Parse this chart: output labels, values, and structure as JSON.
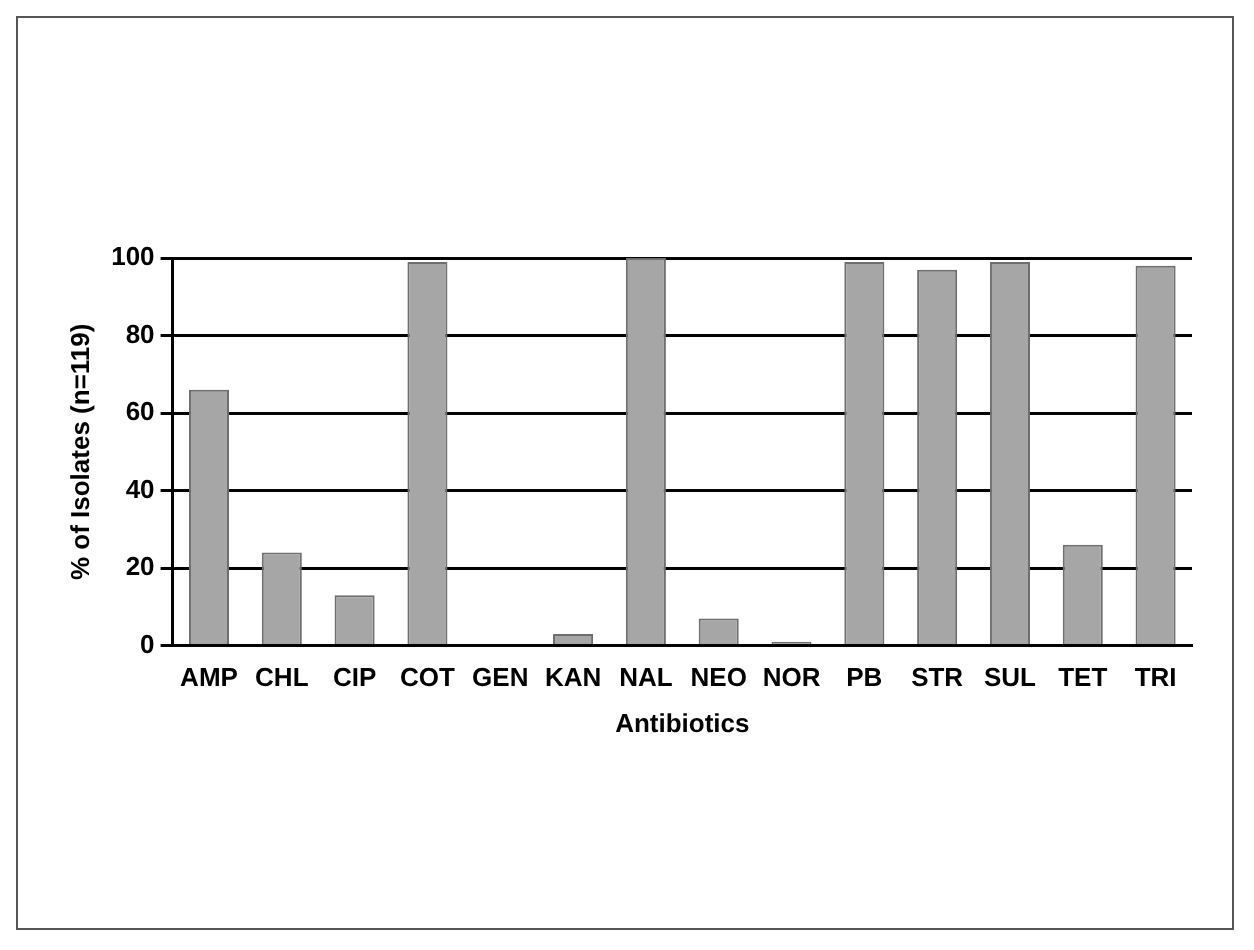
{
  "chart_data": {
    "type": "bar",
    "xlabel": "Antibiotics",
    "ylabel": "% of Isolates (n=119)",
    "categories": [
      "AMP",
      "CHL",
      "CIP",
      "COT",
      "GEN",
      "KAN",
      "NAL",
      "NEO",
      "NOR",
      "PB",
      "STR",
      "SUL",
      "TET",
      "TRI"
    ],
    "values": [
      66,
      24,
      13,
      99,
      0,
      3,
      100,
      7,
      1,
      99,
      97,
      99,
      26,
      98
    ],
    "color": "#a6a6a6",
    "ylim": [
      0,
      100
    ],
    "yticks": [
      0,
      20,
      40,
      60,
      80,
      100
    ],
    "grid": "y"
  }
}
